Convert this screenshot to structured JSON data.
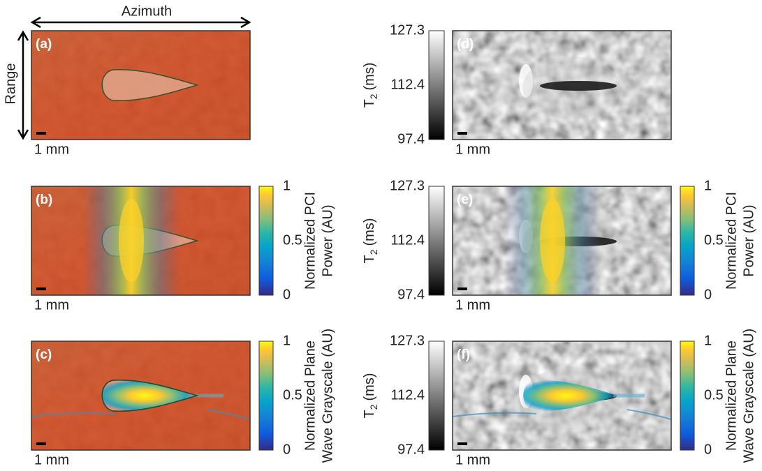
{
  "header": {
    "azimuth": "Azimuth",
    "range": "Range"
  },
  "panels": [
    {
      "label": "(a)",
      "scale": "1 mm"
    },
    {
      "label": "(b)",
      "scale": "1 mm"
    },
    {
      "label": "(c)",
      "scale": "1 mm"
    },
    {
      "label": "(d)",
      "scale": "1 mm"
    },
    {
      "label": "(e)",
      "scale": "1 mm"
    },
    {
      "label": "(f)",
      "scale": "1 mm"
    }
  ],
  "colorbars": {
    "pci": {
      "ticks": [
        1,
        0.5,
        0
      ],
      "title": [
        "Normalized PCI",
        "Power (AU)"
      ]
    },
    "plane": {
      "ticks": [
        1,
        0.5,
        0
      ],
      "title": [
        "Normalized Plane",
        "Wave Grayscale (AU)"
      ]
    },
    "t2": {
      "ticks": [
        127.3,
        112.4,
        97.4
      ],
      "symbol": "T",
      "subscript": "2",
      "unit": "(ms)"
    }
  }
}
